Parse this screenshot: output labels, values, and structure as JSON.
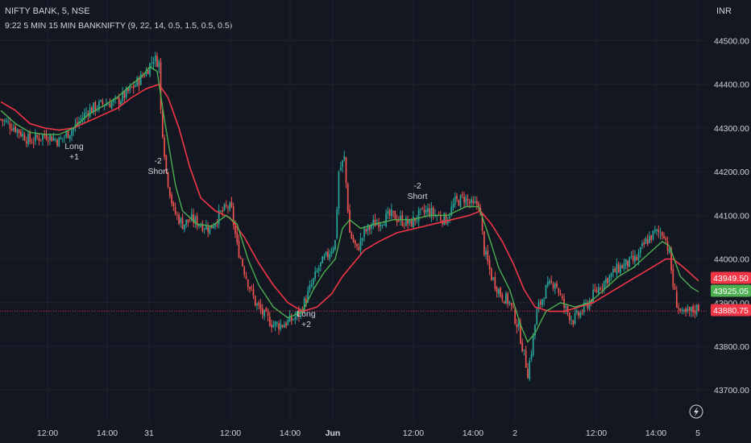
{
  "header": {
    "symbol_line": "NIFTY BANK, 5, NSE",
    "indicator_line": "9:22 5 MIN 15 MIN BANKNIFTY (9, 22, 14, 0.5, 1.5, 0.5, 0.5)",
    "currency": "INR"
  },
  "colors": {
    "background": "#131722",
    "up": "#26a69a",
    "down": "#ef5350",
    "fast_ma": "#4caf50",
    "slow_ma": "#f23645",
    "grid": "#1e222d"
  },
  "chart_data": {
    "type": "candlestick",
    "title": "NIFTY BANK, 5, NSE",
    "ylim": [
      43680,
      44560
    ],
    "y_ticks": [
      "44500.00",
      "44400.00",
      "44300.00",
      "44200.00",
      "44100.00",
      "44000.00",
      "43900.00",
      "43800.00",
      "43700.00"
    ],
    "x_ticks": [
      "12:00",
      "14:00",
      "31",
      "12:00",
      "14:00",
      "Jun",
      "12:00",
      "14:00",
      "2",
      "12:00",
      "14:00",
      "5"
    ],
    "grid": true,
    "price_tags": [
      {
        "label": "43949.50",
        "color": "#f23645"
      },
      {
        "label": "43925.05",
        "color": "#4caf50"
      },
      {
        "label": "43880.75",
        "color": "#f23645"
      }
    ],
    "last_price": 43880.75,
    "annotations": [
      {
        "lines": [
          "Long",
          "+1"
        ],
        "price": 44290
      },
      {
        "lines": [
          "-2",
          "Short"
        ],
        "price": 44220
      },
      {
        "lines": [
          "Long",
          "+2"
        ],
        "price": 43872
      },
      {
        "lines": [
          "-2",
          "Short"
        ],
        "price": 44170
      }
    ],
    "close_path": [
      [
        0,
        44320
      ],
      [
        8,
        44300
      ],
      [
        16,
        44270
      ],
      [
        25,
        44285
      ],
      [
        32,
        44270
      ],
      [
        40,
        44300
      ],
      [
        48,
        44340
      ],
      [
        56,
        44355
      ],
      [
        64,
        44360
      ],
      [
        72,
        44390
      ],
      [
        80,
        44430
      ],
      [
        84,
        44460
      ],
      [
        87,
        44450
      ],
      [
        88,
        44340
      ],
      [
        91,
        44200
      ],
      [
        95,
        44110
      ],
      [
        100,
        44080
      ],
      [
        105,
        44090
      ],
      [
        110,
        44080
      ],
      [
        115,
        44070
      ],
      [
        120,
        44100
      ],
      [
        125,
        44120
      ],
      [
        127,
        44110
      ],
      [
        130,
        44030
      ],
      [
        135,
        43960
      ],
      [
        140,
        43900
      ],
      [
        145,
        43870
      ],
      [
        150,
        43850
      ],
      [
        155,
        43850
      ],
      [
        160,
        43860
      ],
      [
        165,
        43880
      ],
      [
        170,
        43930
      ],
      [
        175,
        43980
      ],
      [
        180,
        44010
      ],
      [
        184,
        44040
      ],
      [
        186,
        44200
      ],
      [
        189,
        44230
      ],
      [
        192,
        44060
      ],
      [
        196,
        44020
      ],
      [
        200,
        44060
      ],
      [
        205,
        44080
      ],
      [
        210,
        44090
      ],
      [
        215,
        44100
      ],
      [
        220,
        44090
      ],
      [
        225,
        44080
      ],
      [
        230,
        44100
      ],
      [
        235,
        44110
      ],
      [
        240,
        44100
      ],
      [
        245,
        44090
      ],
      [
        250,
        44130
      ],
      [
        255,
        44140
      ],
      [
        260,
        44120
      ],
      [
        263,
        44130
      ],
      [
        266,
        44020
      ],
      [
        270,
        43960
      ],
      [
        275,
        43920
      ],
      [
        280,
        43900
      ],
      [
        285,
        43840
      ],
      [
        288,
        43780
      ],
      [
        290,
        43740
      ],
      [
        292,
        43790
      ],
      [
        295,
        43880
      ],
      [
        300,
        43930
      ],
      [
        305,
        43950
      ],
      [
        310,
        43890
      ],
      [
        315,
        43860
      ],
      [
        320,
        43880
      ],
      [
        325,
        43910
      ],
      [
        330,
        43940
      ],
      [
        335,
        43960
      ],
      [
        340,
        43980
      ],
      [
        345,
        43990
      ],
      [
        350,
        44000
      ],
      [
        355,
        44040
      ],
      [
        360,
        44060
      ],
      [
        365,
        44060
      ],
      [
        368,
        44010
      ],
      [
        370,
        43940
      ],
      [
        372,
        43900
      ],
      [
        375,
        43870
      ],
      [
        380,
        43880
      ],
      [
        384,
        43890
      ]
    ],
    "fast_ma_path": [
      [
        0,
        44340
      ],
      [
        8,
        44310
      ],
      [
        16,
        44290
      ],
      [
        25,
        44285
      ],
      [
        32,
        44285
      ],
      [
        40,
        44300
      ],
      [
        48,
        44330
      ],
      [
        56,
        44350
      ],
      [
        64,
        44370
      ],
      [
        72,
        44400
      ],
      [
        78,
        44420
      ],
      [
        82,
        44440
      ],
      [
        86,
        44430
      ],
      [
        90,
        44320
      ],
      [
        96,
        44170
      ],
      [
        100,
        44110
      ],
      [
        108,
        44080
      ],
      [
        116,
        44075
      ],
      [
        124,
        44100
      ],
      [
        130,
        44080
      ],
      [
        136,
        44000
      ],
      [
        142,
        43940
      ],
      [
        150,
        43890
      ],
      [
        158,
        43865
      ],
      [
        166,
        43880
      ],
      [
        172,
        43930
      ],
      [
        178,
        43970
      ],
      [
        184,
        44000
      ],
      [
        188,
        44070
      ],
      [
        192,
        44090
      ],
      [
        198,
        44070
      ],
      [
        206,
        44080
      ],
      [
        216,
        44090
      ],
      [
        226,
        44090
      ],
      [
        236,
        44100
      ],
      [
        246,
        44100
      ],
      [
        256,
        44120
      ],
      [
        263,
        44120
      ],
      [
        268,
        44060
      ],
      [
        274,
        43980
      ],
      [
        280,
        43930
      ],
      [
        286,
        43850
      ],
      [
        290,
        43810
      ],
      [
        294,
        43830
      ],
      [
        300,
        43880
      ],
      [
        308,
        43900
      ],
      [
        316,
        43890
      ],
      [
        324,
        43900
      ],
      [
        332,
        43930
      ],
      [
        340,
        43960
      ],
      [
        348,
        43980
      ],
      [
        356,
        44010
      ],
      [
        364,
        44040
      ],
      [
        368,
        44030
      ],
      [
        374,
        43960
      ],
      [
        380,
        43935
      ],
      [
        384,
        43925
      ]
    ],
    "slow_ma_path": [
      [
        0,
        44360
      ],
      [
        8,
        44340
      ],
      [
        16,
        44310
      ],
      [
        24,
        44300
      ],
      [
        32,
        44295
      ],
      [
        40,
        44300
      ],
      [
        48,
        44315
      ],
      [
        56,
        44330
      ],
      [
        64,
        44345
      ],
      [
        72,
        44370
      ],
      [
        80,
        44390
      ],
      [
        87,
        44400
      ],
      [
        92,
        44370
      ],
      [
        98,
        44300
      ],
      [
        104,
        44210
      ],
      [
        110,
        44140
      ],
      [
        118,
        44110
      ],
      [
        126,
        44095
      ],
      [
        134,
        44050
      ],
      [
        142,
        43990
      ],
      [
        150,
        43940
      ],
      [
        158,
        43900
      ],
      [
        166,
        43880
      ],
      [
        174,
        43890
      ],
      [
        182,
        43920
      ],
      [
        188,
        43960
      ],
      [
        194,
        43990
      ],
      [
        200,
        44020
      ],
      [
        208,
        44040
      ],
      [
        218,
        44060
      ],
      [
        228,
        44070
      ],
      [
        238,
        44080
      ],
      [
        248,
        44090
      ],
      [
        258,
        44100
      ],
      [
        264,
        44110
      ],
      [
        270,
        44080
      ],
      [
        276,
        44040
      ],
      [
        282,
        43990
      ],
      [
        288,
        43930
      ],
      [
        294,
        43890
      ],
      [
        302,
        43880
      ],
      [
        310,
        43880
      ],
      [
        318,
        43890
      ],
      [
        326,
        43900
      ],
      [
        334,
        43920
      ],
      [
        342,
        43940
      ],
      [
        350,
        43960
      ],
      [
        358,
        43980
      ],
      [
        366,
        44000
      ],
      [
        370,
        44000
      ],
      [
        376,
        43980
      ],
      [
        384,
        43950
      ]
    ]
  }
}
